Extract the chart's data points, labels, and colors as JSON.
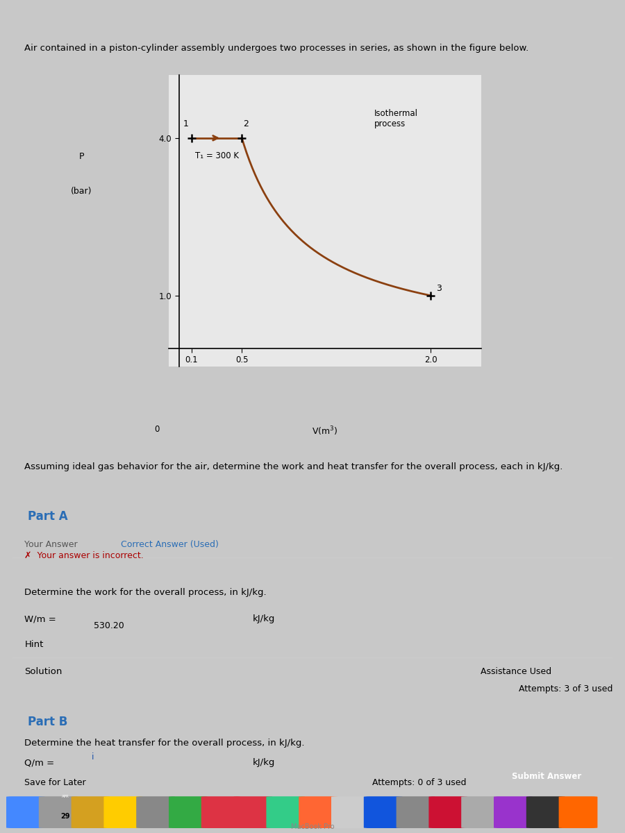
{
  "page_bg": "#c8c8c8",
  "panel_bg": "#e8e8e8",
  "white_bg": "#ffffff",
  "section_bg": "#f2f2f2",
  "header_text": "Air contained in a piston-cylinder assembly undergoes two processes in series, as shown in the figure below.",
  "assume_text": "Assuming ideal gas behavior for the air, determine the work and heat transfer for the overall process, each in kJ/kg.",
  "part_a_label": "Part A",
  "part_b_label": "Part B",
  "tab_your_answer": "Your Answer",
  "tab_correct": "Correct Answer (Used)",
  "error_msg": "✗  Your answer is incorrect.",
  "error_bg": "#f0c8c8",
  "error_border": "#cc6666",
  "part_a_question": "Determine the work for the overall process, in kJ/kg.",
  "wm_label": "W/m =",
  "wm_value": "530.20",
  "unit_wm": "kJ/kg",
  "hint_label": "Hint",
  "solution_label": "Solution",
  "assistance_used": "Assistance Used",
  "attempts_3": "Attempts: 3 of 3 used",
  "part_b_question": "Determine the heat transfer for the overall process, in kJ/kg.",
  "qm_label": "Q/m =",
  "qm_placeholder": "i",
  "unit_qm": "kJ/kg",
  "save_later": "Save for Later",
  "attempts_0": "Attempts: 0 of 3 used",
  "submit_btn": "Submit Answer",
  "submit_btn_bg": "#2a7de1",
  "part_color": "#2a6db5",
  "correct_answer_color": "#2a6db5",
  "graph_line_color": "#8B4010",
  "isothermal_label": "Isothermal\nprocess",
  "T1_label": "T₁ = 300 K",
  "point1": [
    0.1,
    4.0
  ],
  "point2": [
    0.5,
    4.0
  ],
  "point3": [
    2.0,
    1.0
  ],
  "dock_bg": "#1a1a1a",
  "dock_items_bg": "#3a3a3a"
}
